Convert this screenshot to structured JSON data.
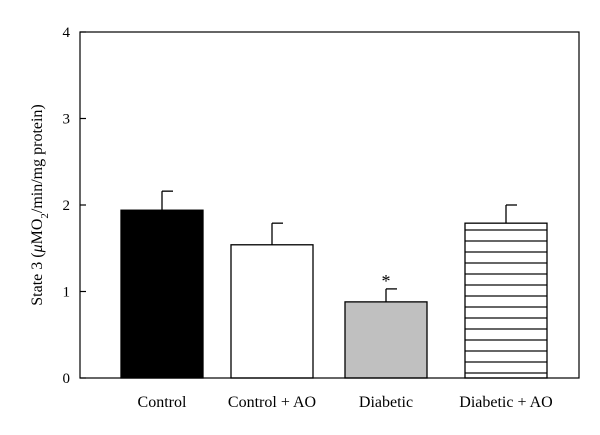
{
  "chart_data": {
    "type": "bar",
    "title": "",
    "xlabel": "",
    "ylabel": {
      "prefix": "State 3 (",
      "mu": "μ",
      "mo": "MO",
      "sub": "2",
      "suffix": "/min/mg protein)"
    },
    "ylim": [
      0,
      4
    ],
    "yticks": [
      "0",
      "1",
      "2",
      "3",
      "4"
    ],
    "grid": false,
    "legend": "none",
    "categories": [
      "Control",
      "Control + AO",
      "Diabetic",
      "Diabetic + AO"
    ],
    "values": [
      1.94,
      1.54,
      0.88,
      1.79
    ],
    "errors": [
      0.22,
      0.25,
      0.15,
      0.21
    ],
    "fills": [
      "solid-black",
      "white",
      "light-gray",
      "horizontal-stripes"
    ],
    "colors": {
      "black": "#000000",
      "gray": "#c0c0c0",
      "white": "#ffffff"
    },
    "annotations": [
      {
        "category_index": 2,
        "text": "*"
      }
    ]
  }
}
